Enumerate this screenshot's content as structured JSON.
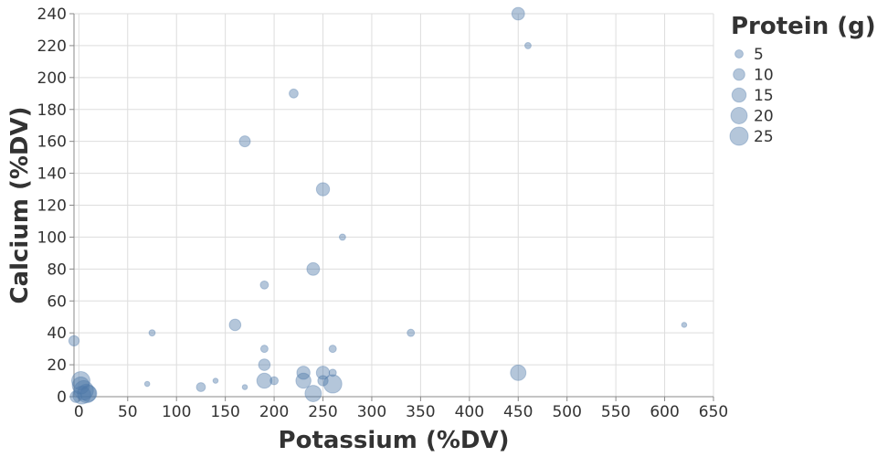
{
  "chart_data": {
    "type": "scatter",
    "xlabel": "Potassium (%DV)",
    "ylabel": "Calcium (%DV)",
    "xlim": [
      -5,
      650
    ],
    "ylim": [
      0,
      240
    ],
    "x_ticks": [
      0,
      50,
      100,
      150,
      200,
      250,
      300,
      350,
      400,
      450,
      500,
      550,
      600,
      650
    ],
    "y_ticks": [
      0,
      20,
      40,
      60,
      80,
      100,
      120,
      140,
      160,
      180,
      200,
      220,
      240
    ],
    "grid": true,
    "size_legend": {
      "title": "Protein (g)",
      "values": [
        5,
        10,
        15,
        20,
        25
      ],
      "placement": "top-right"
    },
    "mark_color": "#4c78a8",
    "points": [
      {
        "x": 450,
        "y": 240,
        "size": 12
      },
      {
        "x": 460,
        "y": 220,
        "size": 3
      },
      {
        "x": 220,
        "y": 190,
        "size": 6
      },
      {
        "x": 170,
        "y": 160,
        "size": 9
      },
      {
        "x": 250,
        "y": 130,
        "size": 13
      },
      {
        "x": 270,
        "y": 100,
        "size": 3
      },
      {
        "x": 240,
        "y": 80,
        "size": 12
      },
      {
        "x": 190,
        "y": 70,
        "size": 5
      },
      {
        "x": 160,
        "y": 45,
        "size": 10
      },
      {
        "x": 620,
        "y": 45,
        "size": 2
      },
      {
        "x": 75,
        "y": 40,
        "size": 3
      },
      {
        "x": 340,
        "y": 40,
        "size": 4
      },
      {
        "x": -5,
        "y": 35,
        "size": 8
      },
      {
        "x": 190,
        "y": 30,
        "size": 4
      },
      {
        "x": 260,
        "y": 30,
        "size": 4
      },
      {
        "x": 190,
        "y": 20,
        "size": 10
      },
      {
        "x": 230,
        "y": 15,
        "size": 13
      },
      {
        "x": 250,
        "y": 15,
        "size": 13
      },
      {
        "x": 260,
        "y": 15,
        "size": 4
      },
      {
        "x": 450,
        "y": 15,
        "size": 18
      },
      {
        "x": 190,
        "y": 10,
        "size": 17
      },
      {
        "x": 200,
        "y": 10,
        "size": 5
      },
      {
        "x": 230,
        "y": 10,
        "size": 17
      },
      {
        "x": 250,
        "y": 10,
        "size": 8
      },
      {
        "x": 2,
        "y": 10,
        "size": 25
      },
      {
        "x": 70,
        "y": 8,
        "size": 2
      },
      {
        "x": 140,
        "y": 10,
        "size": 2
      },
      {
        "x": 125,
        "y": 6,
        "size": 6
      },
      {
        "x": 170,
        "y": 6,
        "size": 2
      },
      {
        "x": 260,
        "y": 8,
        "size": 25
      },
      {
        "x": 2,
        "y": 7,
        "size": 22
      },
      {
        "x": 5,
        "y": 4,
        "size": 28
      },
      {
        "x": 8,
        "y": 2,
        "size": 26
      },
      {
        "x": 3,
        "y": 1,
        "size": 24
      },
      {
        "x": 10,
        "y": 2,
        "size": 20
      },
      {
        "x": -3,
        "y": 0,
        "size": 10
      },
      {
        "x": 240,
        "y": 2,
        "size": 20
      }
    ]
  }
}
